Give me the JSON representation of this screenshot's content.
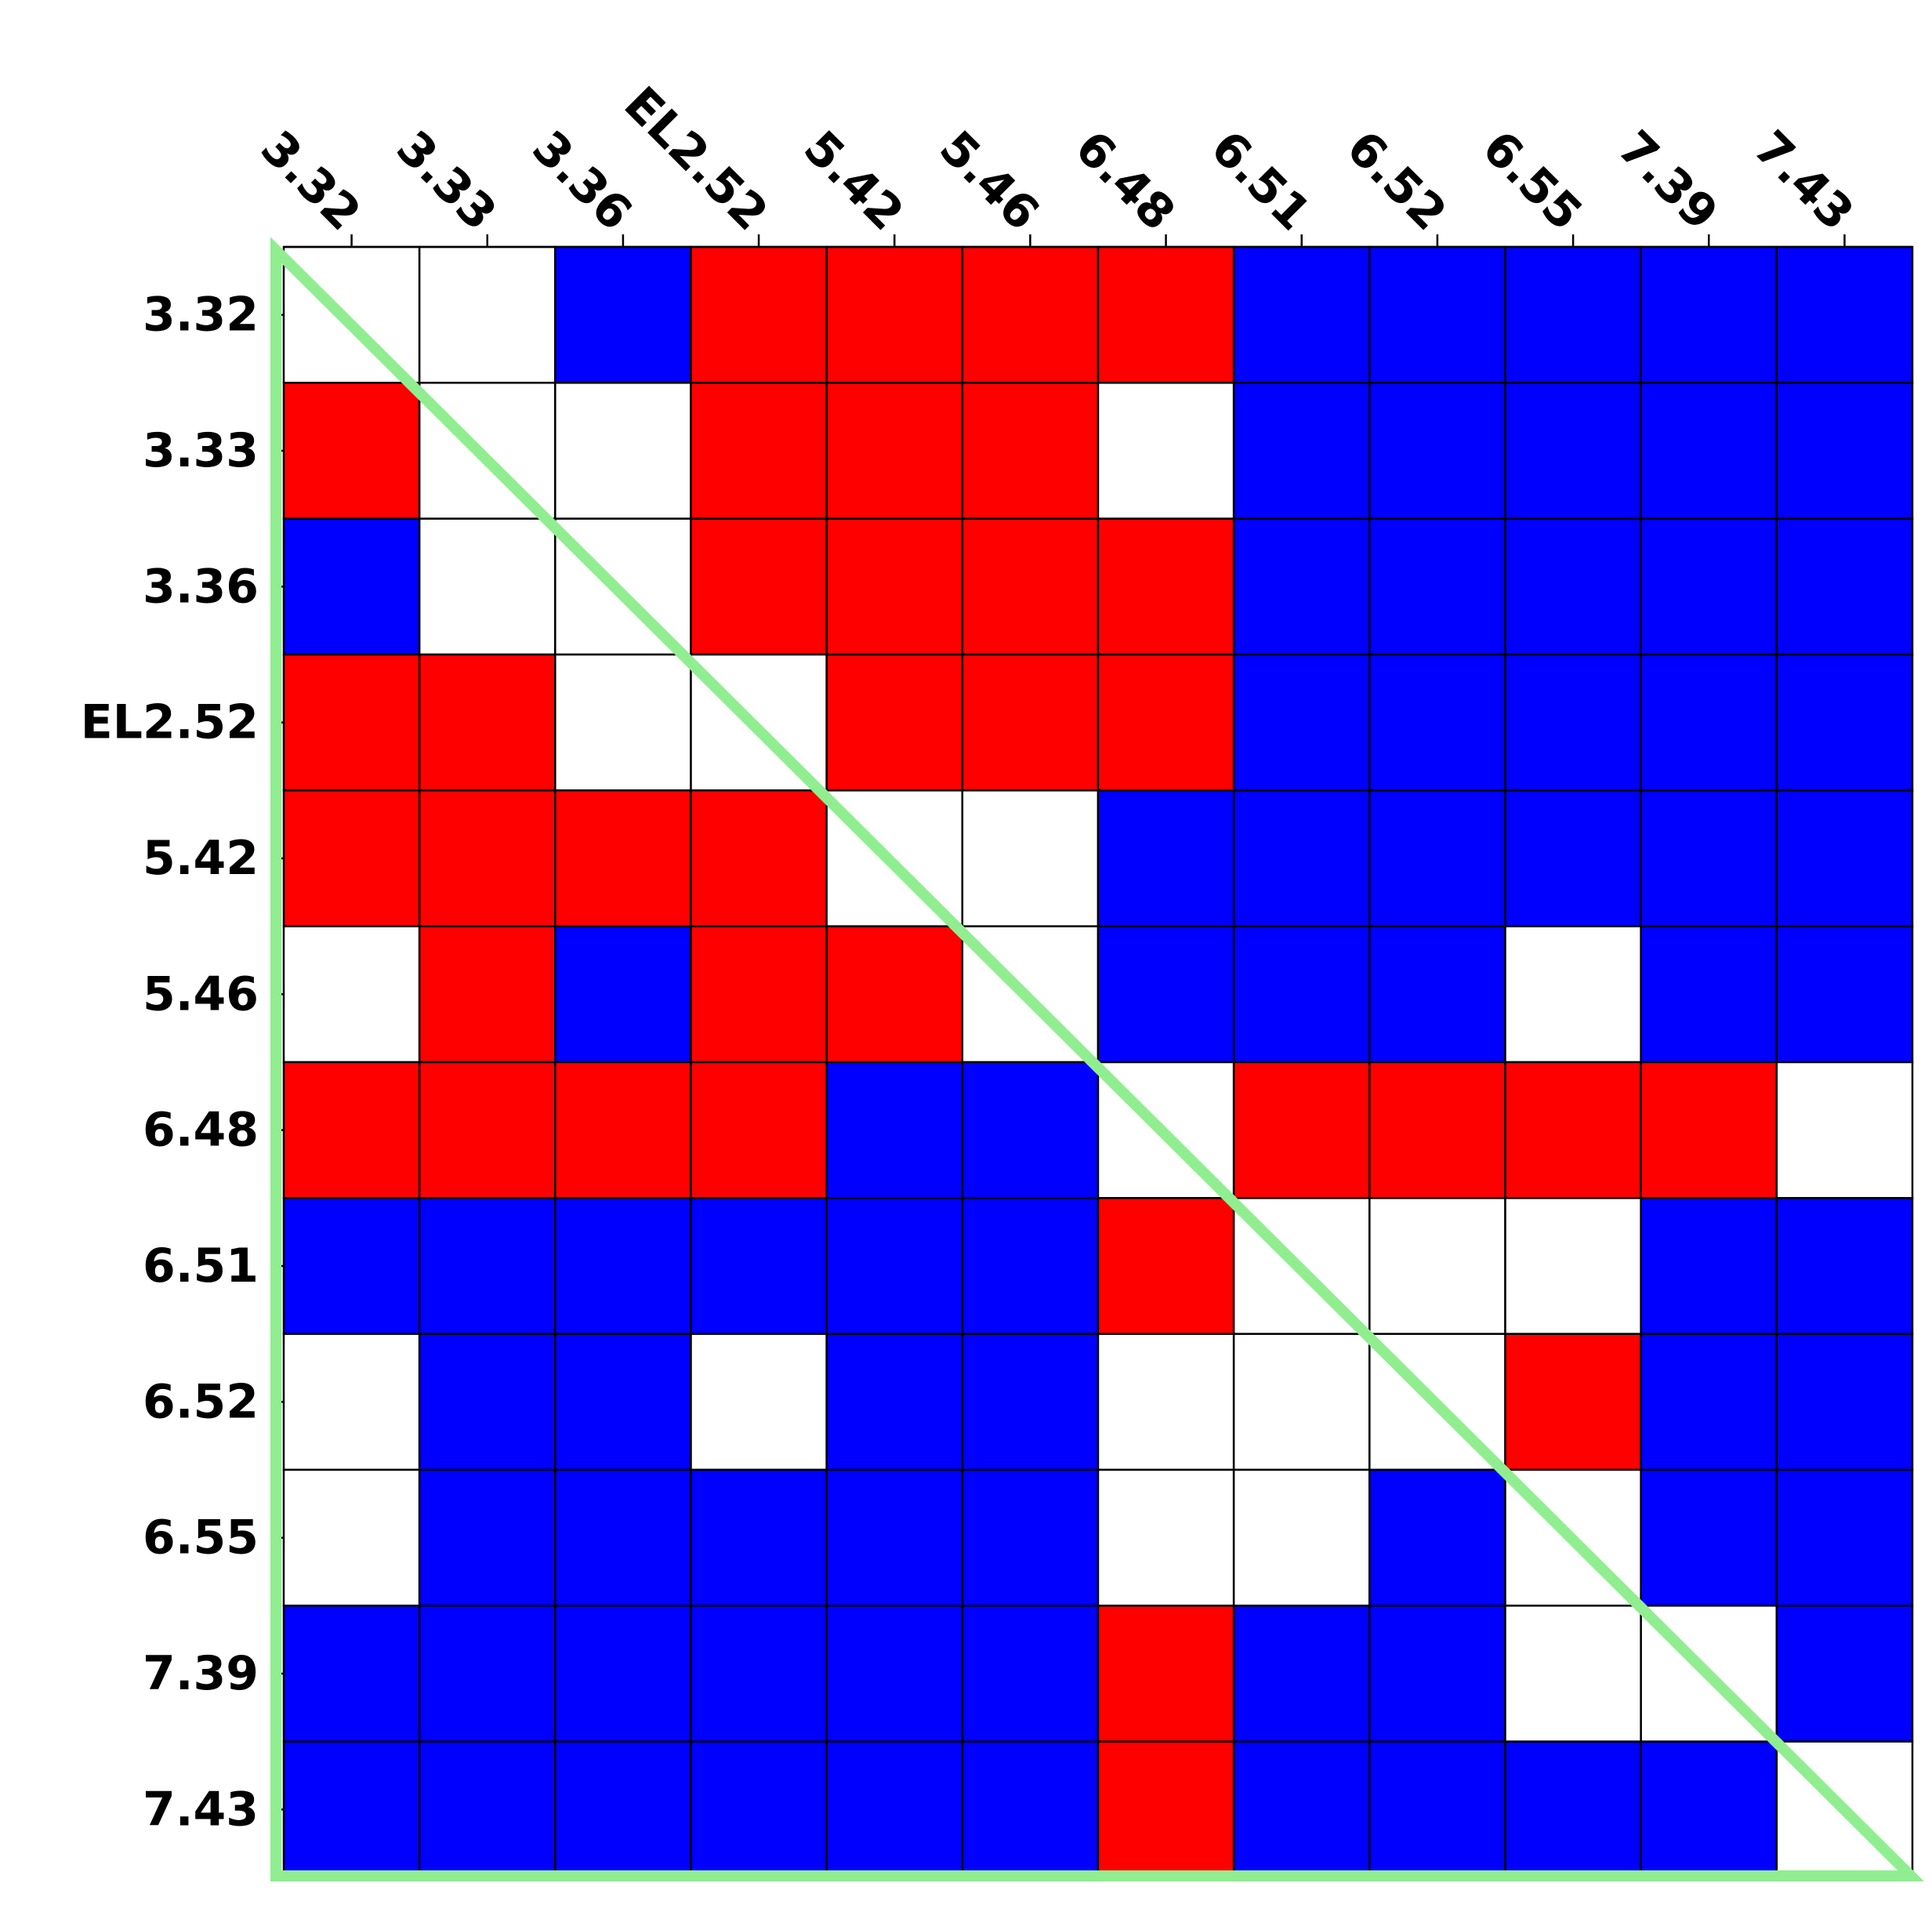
{
  "chart_data": {
    "type": "heatmap",
    "labels": [
      "3.32",
      "3.33",
      "3.36",
      "EL2.52",
      "5.42",
      "5.46",
      "6.48",
      "6.51",
      "6.52",
      "6.55",
      "7.39",
      "7.43"
    ],
    "cell_colors": {
      "R": "#ff0000",
      "B": "#0000ff",
      "W": "#ffffff"
    },
    "matrix": [
      [
        "W",
        "W",
        "B",
        "R",
        "R",
        "R",
        "R",
        "B",
        "B",
        "B",
        "B",
        "B"
      ],
      [
        "R",
        "W",
        "W",
        "R",
        "R",
        "R",
        "W",
        "B",
        "B",
        "B",
        "B",
        "B"
      ],
      [
        "B",
        "W",
        "W",
        "R",
        "R",
        "R",
        "R",
        "B",
        "B",
        "B",
        "B",
        "B"
      ],
      [
        "R",
        "R",
        "W",
        "W",
        "R",
        "R",
        "R",
        "B",
        "B",
        "B",
        "B",
        "B"
      ],
      [
        "R",
        "R",
        "R",
        "R",
        "W",
        "W",
        "B",
        "B",
        "B",
        "B",
        "B",
        "B"
      ],
      [
        "W",
        "R",
        "B",
        "R",
        "R",
        "W",
        "B",
        "B",
        "B",
        "W",
        "B",
        "B"
      ],
      [
        "R",
        "R",
        "R",
        "R",
        "B",
        "B",
        "W",
        "R",
        "R",
        "R",
        "R",
        "W"
      ],
      [
        "B",
        "B",
        "B",
        "B",
        "B",
        "B",
        "R",
        "W",
        "W",
        "W",
        "B",
        "B"
      ],
      [
        "W",
        "B",
        "B",
        "W",
        "B",
        "B",
        "W",
        "W",
        "W",
        "R",
        "B",
        "B"
      ],
      [
        "W",
        "B",
        "B",
        "B",
        "B",
        "B",
        "W",
        "W",
        "B",
        "W",
        "B",
        "B"
      ],
      [
        "B",
        "B",
        "B",
        "B",
        "B",
        "B",
        "R",
        "B",
        "B",
        "W",
        "W",
        "B"
      ],
      [
        "B",
        "B",
        "B",
        "B",
        "B",
        "B",
        "R",
        "B",
        "B",
        "B",
        "B",
        "W"
      ]
    ],
    "x_tick_position": "top",
    "x_tick_rotation_deg": -45,
    "grid": true,
    "grid_color": "#000000",
    "overlay": {
      "shape": "lower-left-triangle",
      "color": "#90ee90"
    }
  }
}
